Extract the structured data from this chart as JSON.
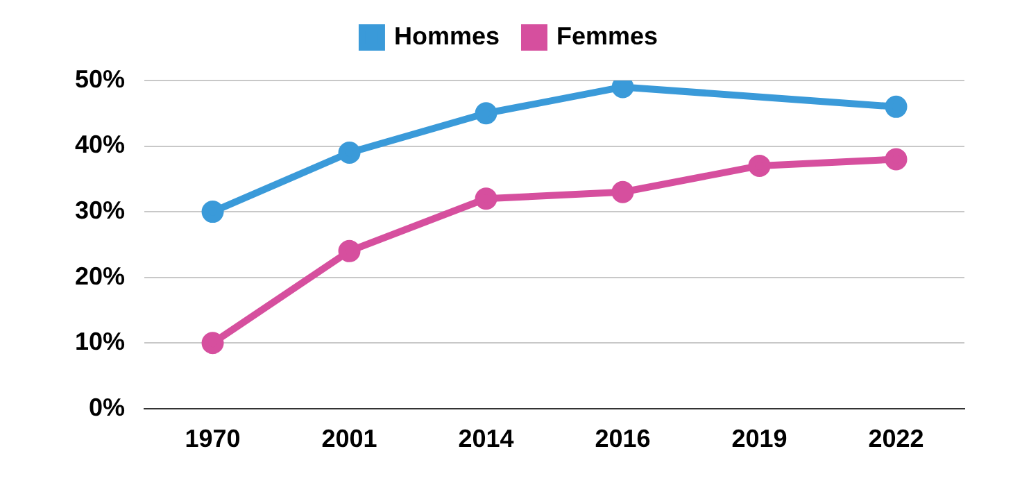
{
  "chart_data": {
    "type": "line",
    "categories": [
      "1970",
      "2001",
      "2014",
      "2016",
      "2019",
      "2022"
    ],
    "series": [
      {
        "name": "Hommes",
        "color": "#3a9ad9",
        "values": [
          30,
          39,
          45,
          49,
          null,
          46
        ]
      },
      {
        "name": "Femmes",
        "color": "#d64f9e",
        "values": [
          10,
          24,
          32,
          33,
          37,
          38
        ]
      }
    ],
    "ylim": [
      0,
      50
    ],
    "yticks": [
      {
        "value": 0,
        "label": "0%"
      },
      {
        "value": 10,
        "label": "10%"
      },
      {
        "value": 20,
        "label": "20%"
      },
      {
        "value": 30,
        "label": "30%"
      },
      {
        "value": 40,
        "label": "40%"
      },
      {
        "value": 50,
        "label": "50%"
      }
    ],
    "grid": "y",
    "legend": "top",
    "marker": "circle",
    "line_style": "solid"
  }
}
